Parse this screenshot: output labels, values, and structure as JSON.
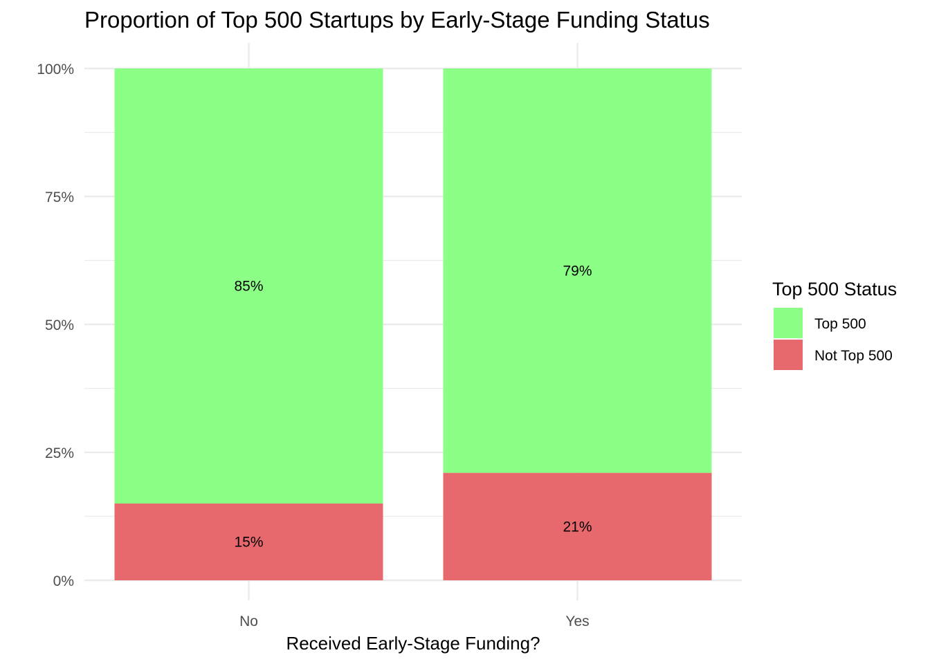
{
  "chart_data": {
    "type": "bar",
    "stacked": true,
    "title": "Proportion of Top 500 Startups by Early-Stage Funding Status",
    "xlabel": "Received Early-Stage Funding?",
    "ylabel": "",
    "categories": [
      "No",
      "Yes"
    ],
    "series": [
      {
        "name": "Not Top 500",
        "values": [
          0.15,
          0.21
        ],
        "labels": [
          "15%",
          "21%"
        ],
        "color": "#E8696D"
      },
      {
        "name": "Top 500",
        "values": [
          0.85,
          0.79
        ],
        "labels": [
          "85%",
          "79%"
        ],
        "color": "#8CFF86"
      }
    ],
    "ylim": [
      0,
      1
    ],
    "yticks": [
      {
        "value": 0,
        "label": "0%"
      },
      {
        "value": 0.25,
        "label": "25%"
      },
      {
        "value": 0.5,
        "label": "50%"
      },
      {
        "value": 0.75,
        "label": "75%"
      },
      {
        "value": 1,
        "label": "100%"
      }
    ],
    "grid": true,
    "legend": {
      "title": "Top 500 Status",
      "position": "right",
      "entries": [
        {
          "name": "Top 500",
          "color": "#8CFF86"
        },
        {
          "name": "Not Top 500",
          "color": "#E8696D"
        }
      ]
    }
  }
}
